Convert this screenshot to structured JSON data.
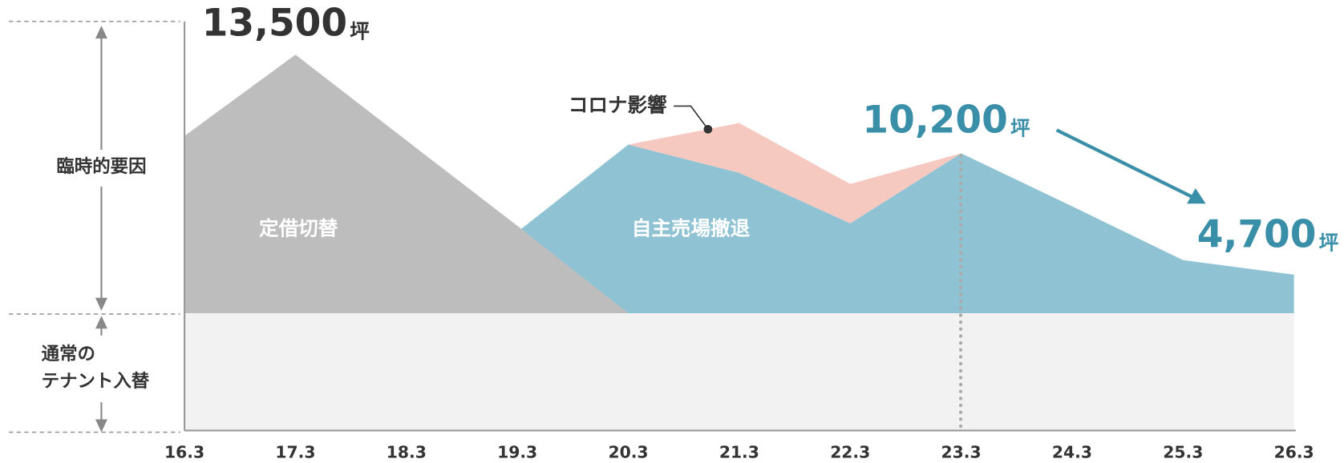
{
  "chart_data": {
    "type": "area",
    "categories": [
      "16.3",
      "17.3",
      "18.3",
      "19.3",
      "20.3",
      "21.3",
      "22.3",
      "23.3",
      "24.3",
      "25.3",
      "26.3"
    ],
    "ylim": [
      0,
      14000
    ],
    "series": [
      {
        "color": "#f2f2f2",
        "values": [
          4200,
          4200,
          4200,
          4200,
          4200,
          4200,
          4200,
          4200,
          4200,
          4200,
          4200
        ]
      },
      {
        "name": "定借切替",
        "color": "#bdbdbd",
        "values": [
          6350,
          9260,
          6190,
          3130,
          0,
          null,
          null,
          null,
          null,
          null,
          null
        ]
      },
      {
        "name": "自主売場撤退",
        "color": "#8fc3d4",
        "values": [
          null,
          null,
          null,
          2910,
          6040,
          5030,
          3220,
          5730,
          3830,
          1900,
          1380
        ]
      },
      {
        "name": "コロナ影響",
        "color": "#f5c8c0",
        "values": [
          null,
          null,
          null,
          null,
          0,
          1780,
          1410,
          0,
          null,
          null,
          null
        ]
      }
    ],
    "bands": {
      "temporary": "臨時的要因",
      "normal": [
        "通常の",
        "テナント入替"
      ]
    },
    "annotations": [
      {
        "text": "13,500",
        "unit": "坪",
        "color": "#333333"
      },
      {
        "text": "10,200",
        "unit": "坪",
        "color": "#3a8fa8"
      },
      {
        "text": "4,700",
        "unit": "坪",
        "color": "#3a8fa8"
      }
    ]
  }
}
